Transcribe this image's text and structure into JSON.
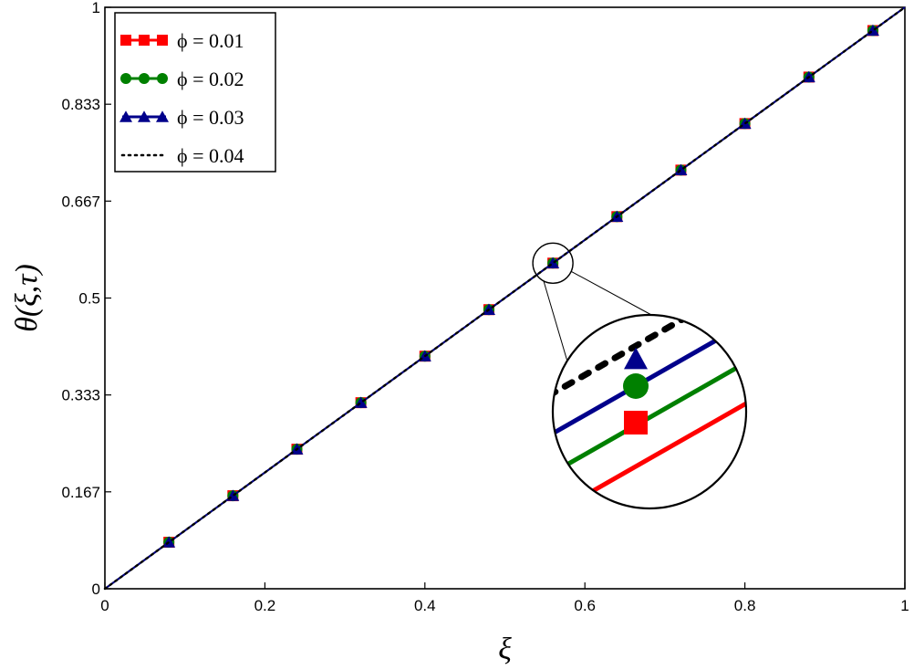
{
  "chart_data": {
    "type": "line",
    "xlabel": "ξ",
    "ylabel": "θ(ξ,τ)",
    "xlim": [
      0,
      1
    ],
    "ylim": [
      0,
      1
    ],
    "x_ticks": [
      {
        "value": 0,
        "label": "0"
      },
      {
        "value": 0.2,
        "label": "0.2"
      },
      {
        "value": 0.4,
        "label": "0.4"
      },
      {
        "value": 0.6,
        "label": "0.6"
      },
      {
        "value": 0.8,
        "label": "0.8"
      },
      {
        "value": 1,
        "label": "1"
      }
    ],
    "y_ticks": [
      {
        "value": 0,
        "label": "0"
      },
      {
        "value": 0.1667,
        "label": "0.167"
      },
      {
        "value": 0.3333,
        "label": "0.333"
      },
      {
        "value": 0.5,
        "label": "0.5"
      },
      {
        "value": 0.6667,
        "label": "0.667"
      },
      {
        "value": 0.8333,
        "label": "0.833"
      },
      {
        "value": 1,
        "label": "1"
      }
    ],
    "grid": false,
    "legend_position": "top-left",
    "x": [
      0,
      0.08,
      0.16,
      0.24,
      0.32,
      0.4,
      0.48,
      0.56,
      0.64,
      0.72,
      0.8,
      0.88,
      0.96,
      1.0
    ],
    "series": [
      {
        "name": "ϕ = 0.01",
        "color": "#ff0000",
        "marker": "square",
        "line": "solid",
        "values": [
          0,
          0.08,
          0.16,
          0.24,
          0.32,
          0.4,
          0.48,
          0.56,
          0.64,
          0.72,
          0.8,
          0.88,
          0.96,
          1.0
        ]
      },
      {
        "name": "ϕ = 0.02",
        "color": "#008000",
        "marker": "circle",
        "line": "solid",
        "values": [
          0,
          0.08,
          0.16,
          0.24,
          0.32,
          0.4,
          0.48,
          0.56,
          0.64,
          0.72,
          0.8,
          0.88,
          0.96,
          1.0
        ]
      },
      {
        "name": "ϕ = 0.03",
        "color": "#00008b",
        "marker": "triangle",
        "line": "solid",
        "values": [
          0,
          0.08,
          0.16,
          0.24,
          0.32,
          0.4,
          0.48,
          0.56,
          0.64,
          0.72,
          0.8,
          0.88,
          0.96,
          1.0
        ]
      },
      {
        "name": "ϕ = 0.04",
        "color": "#000000",
        "marker": "none",
        "line": "dotted",
        "values": [
          0,
          0.08,
          0.16,
          0.24,
          0.32,
          0.4,
          0.48,
          0.56,
          0.64,
          0.72,
          0.8,
          0.88,
          0.96,
          1.0
        ]
      }
    ],
    "annotations": [
      {
        "type": "zoom-inset",
        "focus_x": 0.56,
        "focus_y": 0.56
      }
    ]
  }
}
